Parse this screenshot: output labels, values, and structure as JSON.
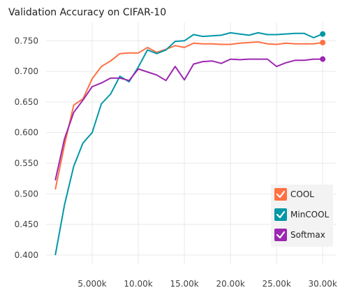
{
  "chart_data": {
    "type": "line",
    "title": "Validation Accuracy on CIFAR-10",
    "xlabel": "",
    "ylabel": "",
    "xlim": [
      0,
      31500
    ],
    "ylim": [
      0.385,
      0.78
    ],
    "x_ticks": [
      5000,
      10000,
      15000,
      20000,
      25000,
      30000
    ],
    "x_tick_labels": [
      "5.000k",
      "10.00k",
      "15.00k",
      "20.00k",
      "25.00k",
      "30.00k"
    ],
    "y_ticks": [
      0.4,
      0.45,
      0.5,
      0.55,
      0.6,
      0.65,
      0.7,
      0.75
    ],
    "y_tick_labels": [
      "0.400",
      "0.450",
      "0.500",
      "0.550",
      "0.600",
      "0.650",
      "0.700",
      "0.750"
    ],
    "grid": true,
    "legend_position": "bottom-right",
    "x": [
      1000,
      2000,
      3000,
      4000,
      5000,
      6000,
      7000,
      8000,
      9000,
      10000,
      11000,
      12000,
      13000,
      14000,
      15000,
      16000,
      17000,
      18000,
      19000,
      20000,
      21000,
      22000,
      23000,
      24000,
      25000,
      26000,
      27000,
      28000,
      29000,
      30000
    ],
    "series": [
      {
        "name": "COOL",
        "color": "#ff7043",
        "values": [
          0.507,
          0.58,
          0.645,
          0.655,
          0.688,
          0.708,
          0.717,
          0.729,
          0.73,
          0.73,
          0.739,
          0.731,
          0.736,
          0.742,
          0.739,
          0.746,
          0.745,
          0.745,
          0.744,
          0.744,
          0.746,
          0.747,
          0.748,
          0.745,
          0.744,
          0.746,
          0.745,
          0.745,
          0.745,
          0.747
        ]
      },
      {
        "name": "MinCOOL",
        "color": "#0097a7",
        "values": [
          0.4,
          0.482,
          0.545,
          0.583,
          0.6,
          0.647,
          0.663,
          0.692,
          0.683,
          0.707,
          0.735,
          0.729,
          0.735,
          0.749,
          0.75,
          0.76,
          0.757,
          0.758,
          0.759,
          0.763,
          0.761,
          0.759,
          0.763,
          0.76,
          0.76,
          0.761,
          0.762,
          0.762,
          0.755,
          0.761
        ]
      },
      {
        "name": "Softmax",
        "color": "#9c27b0",
        "values": [
          0.522,
          0.59,
          0.633,
          0.653,
          0.675,
          0.681,
          0.689,
          0.689,
          0.685,
          0.704,
          0.699,
          0.694,
          0.685,
          0.708,
          0.686,
          0.712,
          0.716,
          0.717,
          0.713,
          0.72,
          0.719,
          0.72,
          0.72,
          0.72,
          0.708,
          0.714,
          0.718,
          0.718,
          0.72,
          0.72
        ]
      }
    ]
  }
}
